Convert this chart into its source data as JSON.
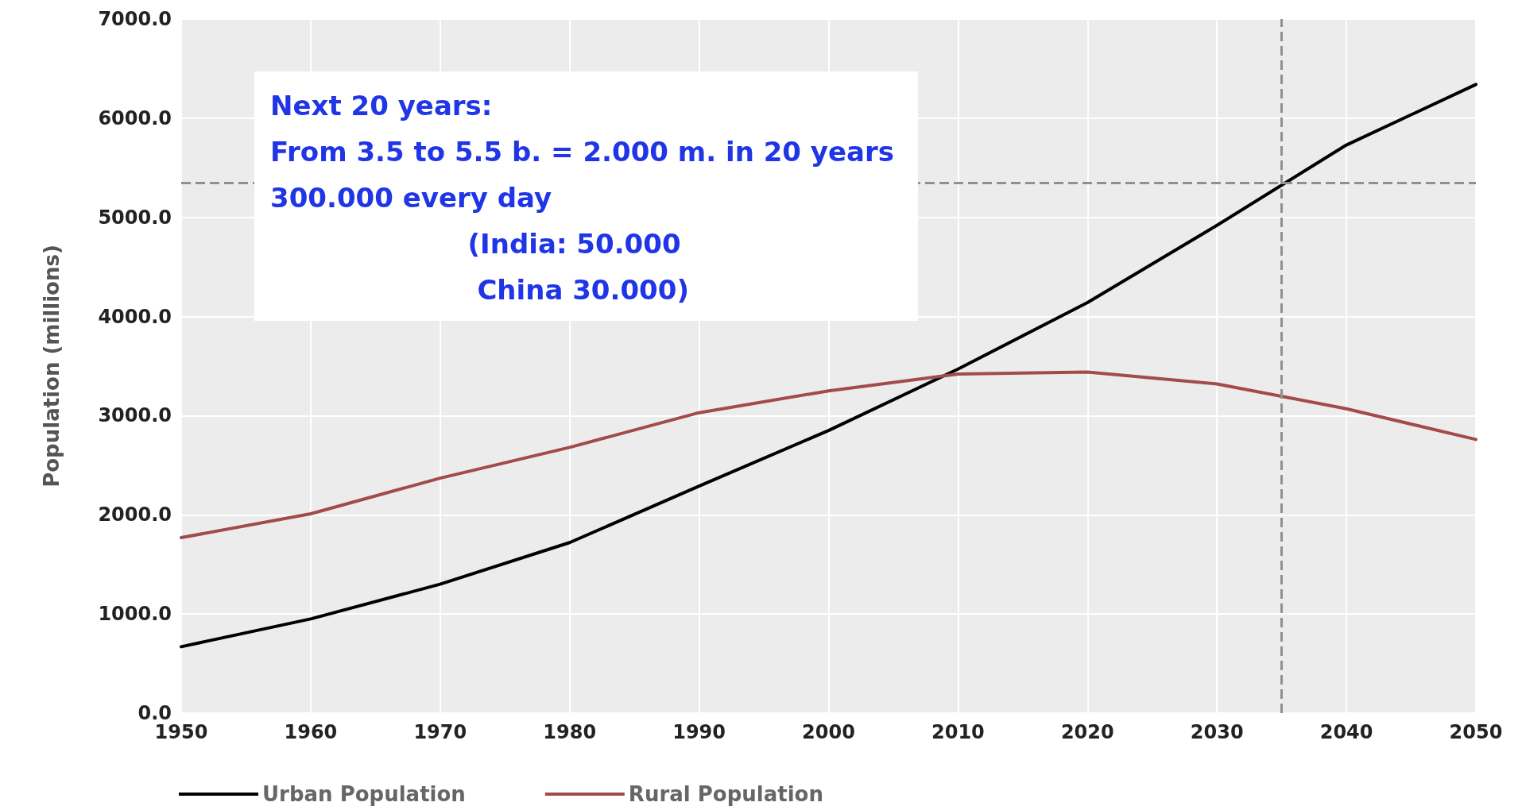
{
  "chart_data": {
    "type": "line",
    "ylabel": "Population (millions)",
    "x": [
      1950,
      1960,
      1970,
      1980,
      1990,
      2000,
      2010,
      2020,
      2030,
      2040,
      2050
    ],
    "series": [
      {
        "name": "Urban Population",
        "color": "#000000",
        "values": [
          670,
          950,
          1300,
          1720,
          2290,
          2850,
          3470,
          4140,
          4920,
          5730,
          6340
        ]
      },
      {
        "name": "Rural Population",
        "color": "#a34a4a",
        "values": [
          1770,
          2010,
          2370,
          2680,
          3030,
          3250,
          3420,
          3440,
          3320,
          3070,
          2760
        ]
      }
    ],
    "xlim": [
      1950,
      2050
    ],
    "xticks": [
      1950,
      1960,
      1970,
      1980,
      1990,
      2000,
      2010,
      2020,
      2030,
      2040,
      2050
    ],
    "ylim": [
      0,
      7000
    ],
    "yticks": [
      {
        "value": 0,
        "label": "0.0"
      },
      {
        "value": 1000,
        "label": "1000.0"
      },
      {
        "value": 2000,
        "label": "2000.0"
      },
      {
        "value": 3000,
        "label": "3000.0"
      },
      {
        "value": 4000,
        "label": "4000.0"
      },
      {
        "value": 5000,
        "label": "5000.0"
      },
      {
        "value": 6000,
        "label": "6000.0"
      },
      {
        "value": 7000,
        "label": "7000.0"
      }
    ],
    "ref_lines": [
      {
        "axis": "y",
        "value": 5350,
        "color": "#909090",
        "line_style": "dashed"
      },
      {
        "axis": "x",
        "value": 2035,
        "color": "#909090",
        "line_style": "dashed"
      }
    ],
    "annotations": [
      "Next 20 years:\nFrom 3.5 to 5.5 b. = 2.000 m. in 20 years\n300.000 every day\n                     (India: 50.000\n                      China 30.000)"
    ],
    "grid": true,
    "legend": "bottom",
    "marker": "none",
    "line_style": "solid"
  }
}
